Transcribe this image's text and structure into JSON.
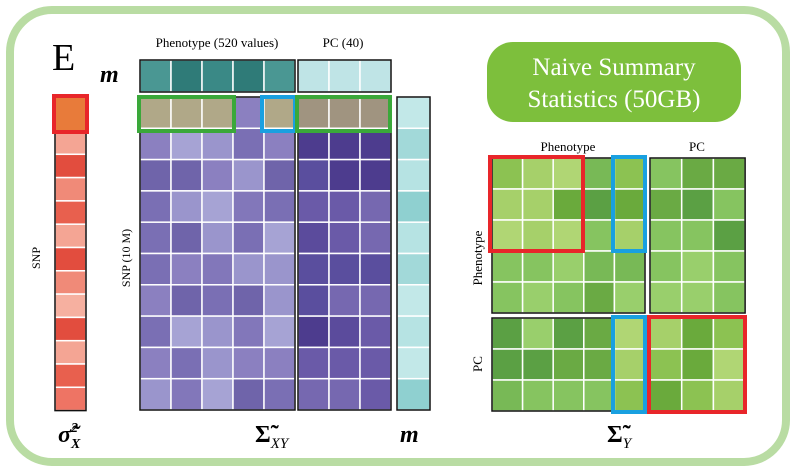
{
  "panel_label": "E",
  "top_labels": {
    "phenotype": "Phenotype (520 values)",
    "pc": "PC (40)"
  },
  "mean_label_top": "m",
  "summary_box": {
    "lines": [
      "Naive Summary",
      "Statistics (50GB)"
    ]
  },
  "axis_labels": {
    "snp": "SNP",
    "snp_matrix": "SNP (10 M)"
  },
  "cov_y_labels": {
    "col_phenotype": "Phenotype",
    "col_pc": "PC",
    "row_phenotype": "Phenotype",
    "row_pc": "PC"
  },
  "symbols": {
    "sigma_x": {
      "base": "σ̃",
      "sup": "2",
      "sub": "X"
    },
    "sigma_xy": {
      "base": "Σ̃",
      "sub": "XY"
    },
    "m_bottom": "m",
    "sigma_y": {
      "base": "Σ̃",
      "sub": "Y"
    }
  }
}
